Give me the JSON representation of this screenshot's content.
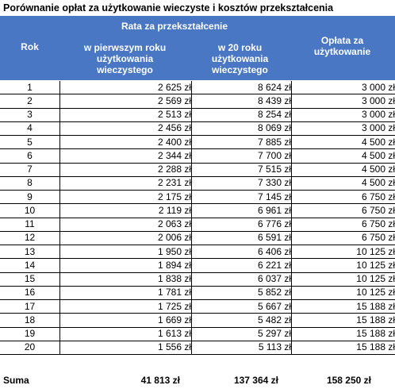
{
  "title": "Porównanie opłat za użytkowanie wieczyste i kosztów przekształcenia",
  "header": {
    "rok": "Rok",
    "rata": "Rata za przekształcenie",
    "col1_l1": "w pierwszym roku",
    "col1_l2": "użytkowania",
    "col1_l3": "wieczystego",
    "col2_l1": "w 20 roku",
    "col2_l2": "użytkowania",
    "col2_l3": "wieczystego",
    "oplata_l1": "Opłata za",
    "oplata_l2": "użytkowanie"
  },
  "rows": [
    {
      "rok": "1",
      "first": "2 625 zł",
      "twentieth": "8 624 zł",
      "fee": "3 000 zł"
    },
    {
      "rok": "2",
      "first": "2 569 zł",
      "twentieth": "8 439 zł",
      "fee": "3 000 zł"
    },
    {
      "rok": "3",
      "first": "2 513 zł",
      "twentieth": "8 254 zł",
      "fee": "3 000 zł"
    },
    {
      "rok": "4",
      "first": "2 456 zł",
      "twentieth": "8 069 zł",
      "fee": "3 000 zł"
    },
    {
      "rok": "5",
      "first": "2 400 zł",
      "twentieth": "7 885 zł",
      "fee": "4 500 zł"
    },
    {
      "rok": "6",
      "first": "2 344 zł",
      "twentieth": "7 700 zł",
      "fee": "4 500 zł"
    },
    {
      "rok": "7",
      "first": "2 288 zł",
      "twentieth": "7 515 zł",
      "fee": "4 500 zł"
    },
    {
      "rok": "8",
      "first": "2 231 zł",
      "twentieth": "7 330 zł",
      "fee": "4 500 zł"
    },
    {
      "rok": "9",
      "first": "2 175 zł",
      "twentieth": "7 145 zł",
      "fee": "6 750 zł"
    },
    {
      "rok": "10",
      "first": "2 119 zł",
      "twentieth": "6 961 zł",
      "fee": "6 750 zł"
    },
    {
      "rok": "11",
      "first": "2 063 zł",
      "twentieth": "6 776 zł",
      "fee": "6 750 zł"
    },
    {
      "rok": "12",
      "first": "2 006 zł",
      "twentieth": "6 591 zł",
      "fee": "6 750 zł"
    },
    {
      "rok": "13",
      "first": "1 950 zł",
      "twentieth": "6 406 zł",
      "fee": "10 125 zł"
    },
    {
      "rok": "14",
      "first": "1 894 zł",
      "twentieth": "6 221 zł",
      "fee": "10 125 zł"
    },
    {
      "rok": "15",
      "first": "1 838 zł",
      "twentieth": "6 037 zł",
      "fee": "10 125 zł"
    },
    {
      "rok": "16",
      "first": "1 781 zł",
      "twentieth": "5 852 zł",
      "fee": "10 125 zł"
    },
    {
      "rok": "17",
      "first": "1 725 zł",
      "twentieth": "5 667 zł",
      "fee": "15 188 zł"
    },
    {
      "rok": "18",
      "first": "1 669 zł",
      "twentieth": "5 482 zł",
      "fee": "15 188 zł"
    },
    {
      "rok": "19",
      "first": "1 613 zł",
      "twentieth": "5 297 zł",
      "fee": "15 188 zł"
    },
    {
      "rok": "20",
      "first": "1 556 zł",
      "twentieth": "5 113 zł",
      "fee": "15 188 zł"
    }
  ],
  "sum": {
    "label": "Suma",
    "first": "41 813 zł",
    "twentieth": "137 364 zł",
    "fee": "158 250 zł"
  }
}
